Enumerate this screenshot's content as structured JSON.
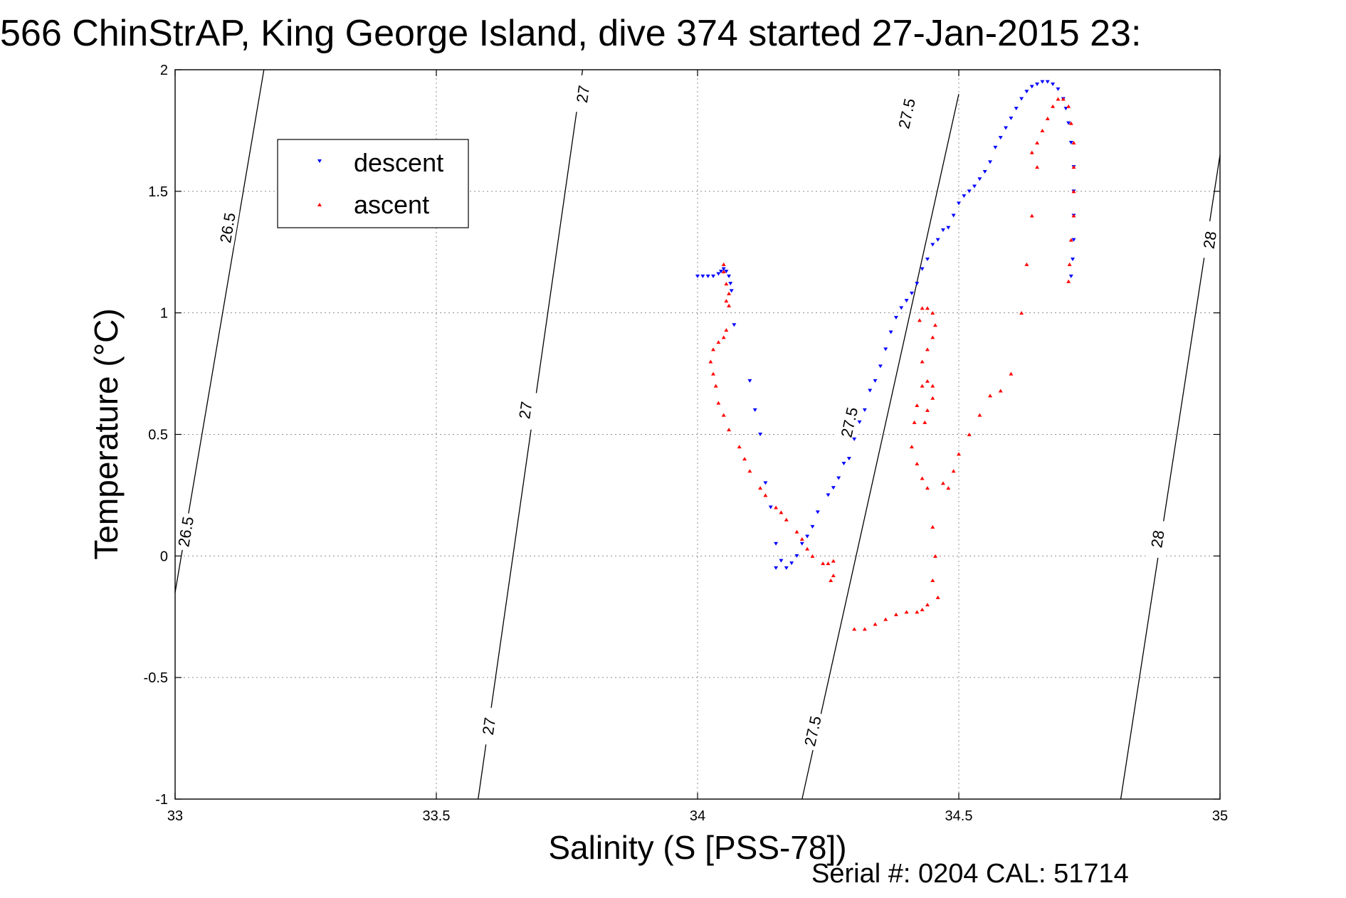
{
  "title": "566 ChinStrAP, King George Island, dive 374 started 27-Jan-2015 23:",
  "footer": "Serial #: 0204  CAL: 51714",
  "chart_data": {
    "type": "scatter",
    "title": "566 ChinStrAP, King George Island, dive 374 started 27-Jan-2015 23:",
    "xlabel": "Salinity (S [PSS-78])",
    "ylabel": "Temperature (°C)",
    "xlim": [
      33,
      35
    ],
    "ylim": [
      -1,
      2
    ],
    "xticks": [
      33,
      33.5,
      34,
      34.5,
      35
    ],
    "xtick_labels": [
      "33",
      "33.5",
      "34",
      "34.5",
      "35"
    ],
    "yticks": [
      -1,
      -0.5,
      0,
      0.5,
      1,
      1.5,
      2
    ],
    "ytick_labels": [
      "-1",
      "-0.5",
      "0",
      "0.5",
      "1",
      "1.5",
      "2"
    ],
    "grid": true,
    "legend": {
      "placement": "top-left",
      "entries": [
        "descent",
        "ascent"
      ]
    },
    "density_contours": [
      {
        "label": "26.5",
        "points": [
          [
            33.0,
            -0.15
          ],
          [
            33.17,
            2.0
          ]
        ],
        "label_positions": [
          [
            33.02,
            0.1
          ],
          [
            33.1,
            1.35
          ]
        ]
      },
      {
        "label": "27",
        "points": [
          [
            33.58,
            -1.0
          ],
          [
            33.78,
            2.0
          ]
        ],
        "label_positions": [
          [
            33.6,
            -0.7
          ],
          [
            33.67,
            0.6
          ],
          [
            33.78,
            1.9
          ]
        ]
      },
      {
        "label": "27.5",
        "points": [
          [
            34.2,
            -1.0
          ],
          [
            34.5,
            1.9
          ]
        ],
        "label_positions": [
          [
            34.22,
            -0.72
          ],
          [
            34.29,
            0.55
          ],
          [
            34.4,
            1.82
          ]
        ]
      },
      {
        "label": "28",
        "points": [
          [
            34.81,
            -1.0
          ],
          [
            35.0,
            1.65
          ]
        ],
        "label_positions": [
          [
            34.88,
            0.07
          ],
          [
            34.98,
            1.3
          ]
        ]
      }
    ],
    "series": [
      {
        "name": "descent",
        "color": "#0000ff",
        "marker": "triangle-down",
        "points": [
          [
            34.0,
            1.15
          ],
          [
            34.01,
            1.15
          ],
          [
            34.02,
            1.15
          ],
          [
            34.03,
            1.15
          ],
          [
            34.04,
            1.16
          ],
          [
            34.045,
            1.17
          ],
          [
            34.05,
            1.18
          ],
          [
            34.055,
            1.17
          ],
          [
            34.06,
            1.15
          ],
          [
            34.063,
            1.12
          ],
          [
            34.065,
            1.09
          ],
          [
            34.07,
            0.95
          ],
          [
            34.1,
            0.72
          ],
          [
            34.11,
            0.6
          ],
          [
            34.12,
            0.5
          ],
          [
            34.13,
            0.3
          ],
          [
            34.14,
            0.2
          ],
          [
            34.15,
            0.05
          ],
          [
            34.15,
            -0.05
          ],
          [
            34.16,
            -0.02
          ],
          [
            34.17,
            -0.05
          ],
          [
            34.18,
            -0.03
          ],
          [
            34.19,
            0.0
          ],
          [
            34.2,
            0.05
          ],
          [
            34.21,
            0.08
          ],
          [
            34.22,
            0.12
          ],
          [
            34.23,
            0.18
          ],
          [
            34.25,
            0.25
          ],
          [
            34.26,
            0.28
          ],
          [
            34.27,
            0.32
          ],
          [
            34.28,
            0.38
          ],
          [
            34.29,
            0.4
          ],
          [
            34.3,
            0.48
          ],
          [
            34.31,
            0.55
          ],
          [
            34.32,
            0.6
          ],
          [
            34.33,
            0.68
          ],
          [
            34.34,
            0.72
          ],
          [
            34.35,
            0.78
          ],
          [
            34.36,
            0.85
          ],
          [
            34.37,
            0.92
          ],
          [
            34.38,
            0.98
          ],
          [
            34.39,
            1.02
          ],
          [
            34.4,
            1.05
          ],
          [
            34.41,
            1.08
          ],
          [
            34.42,
            1.12
          ],
          [
            34.43,
            1.18
          ],
          [
            34.44,
            1.22
          ],
          [
            34.45,
            1.28
          ],
          [
            34.46,
            1.3
          ],
          [
            34.47,
            1.34
          ],
          [
            34.48,
            1.35
          ],
          [
            34.49,
            1.4
          ],
          [
            34.5,
            1.45
          ],
          [
            34.51,
            1.48
          ],
          [
            34.52,
            1.5
          ],
          [
            34.53,
            1.52
          ],
          [
            34.54,
            1.55
          ],
          [
            34.55,
            1.58
          ],
          [
            34.56,
            1.62
          ],
          [
            34.57,
            1.68
          ],
          [
            34.58,
            1.72
          ],
          [
            34.59,
            1.76
          ],
          [
            34.6,
            1.8
          ],
          [
            34.61,
            1.84
          ],
          [
            34.62,
            1.88
          ],
          [
            34.63,
            1.91
          ],
          [
            34.64,
            1.93
          ],
          [
            34.65,
            1.94
          ],
          [
            34.66,
            1.95
          ],
          [
            34.67,
            1.95
          ],
          [
            34.68,
            1.94
          ],
          [
            34.69,
            1.92
          ],
          [
            34.7,
            1.88
          ],
          [
            34.705,
            1.84
          ],
          [
            34.71,
            1.78
          ],
          [
            34.715,
            1.7
          ],
          [
            34.72,
            1.6
          ],
          [
            34.72,
            1.5
          ],
          [
            34.72,
            1.4
          ],
          [
            34.72,
            1.3
          ],
          [
            34.718,
            1.22
          ],
          [
            34.715,
            1.15
          ]
        ]
      },
      {
        "name": "ascent",
        "color": "#ff0000",
        "marker": "triangle-up",
        "points": [
          [
            34.05,
            1.2
          ],
          [
            34.05,
            1.17
          ],
          [
            34.055,
            1.12
          ],
          [
            34.06,
            1.08
          ],
          [
            34.055,
            1.05
          ],
          [
            34.06,
            1.03
          ],
          [
            34.055,
            0.93
          ],
          [
            34.05,
            0.9
          ],
          [
            34.04,
            0.88
          ],
          [
            34.03,
            0.85
          ],
          [
            34.025,
            0.8
          ],
          [
            34.03,
            0.75
          ],
          [
            34.035,
            0.7
          ],
          [
            34.04,
            0.63
          ],
          [
            34.05,
            0.58
          ],
          [
            34.06,
            0.52
          ],
          [
            34.08,
            0.45
          ],
          [
            34.09,
            0.4
          ],
          [
            34.1,
            0.35
          ],
          [
            34.12,
            0.28
          ],
          [
            34.13,
            0.25
          ],
          [
            34.15,
            0.2
          ],
          [
            34.16,
            0.18
          ],
          [
            34.17,
            0.15
          ],
          [
            34.19,
            0.1
          ],
          [
            34.2,
            0.07
          ],
          [
            34.21,
            0.03
          ],
          [
            34.22,
            0.0
          ],
          [
            34.24,
            -0.03
          ],
          [
            34.25,
            -0.03
          ],
          [
            34.26,
            -0.02
          ],
          [
            34.26,
            -0.08
          ],
          [
            34.255,
            -0.1
          ],
          [
            34.3,
            -0.3
          ],
          [
            34.32,
            -0.3
          ],
          [
            34.34,
            -0.28
          ],
          [
            34.36,
            -0.26
          ],
          [
            34.38,
            -0.24
          ],
          [
            34.4,
            -0.23
          ],
          [
            34.42,
            -0.23
          ],
          [
            34.43,
            -0.22
          ],
          [
            34.44,
            -0.2
          ],
          [
            34.45,
            -0.1
          ],
          [
            34.46,
            -0.17
          ],
          [
            34.455,
            0.0
          ],
          [
            34.45,
            0.12
          ],
          [
            34.44,
            0.28
          ],
          [
            34.43,
            0.32
          ],
          [
            34.42,
            0.38
          ],
          [
            34.41,
            0.45
          ],
          [
            34.415,
            0.55
          ],
          [
            34.42,
            0.62
          ],
          [
            34.43,
            0.7
          ],
          [
            34.44,
            0.72
          ],
          [
            34.45,
            0.7
          ],
          [
            34.45,
            0.65
          ],
          [
            34.44,
            0.6
          ],
          [
            34.435,
            0.55
          ],
          [
            34.43,
            0.8
          ],
          [
            34.44,
            0.85
          ],
          [
            34.45,
            0.9
          ],
          [
            34.455,
            0.95
          ],
          [
            34.45,
            1.0
          ],
          [
            34.44,
            1.02
          ],
          [
            34.43,
            1.02
          ],
          [
            34.425,
            0.97
          ],
          [
            34.47,
            0.3
          ],
          [
            34.48,
            0.28
          ],
          [
            34.49,
            0.35
          ],
          [
            34.5,
            0.42
          ],
          [
            34.52,
            0.5
          ],
          [
            34.54,
            0.58
          ],
          [
            34.56,
            0.66
          ],
          [
            34.58,
            0.68
          ],
          [
            34.6,
            0.75
          ],
          [
            34.62,
            1.0
          ],
          [
            34.63,
            1.2
          ],
          [
            34.64,
            1.4
          ],
          [
            34.65,
            1.6
          ],
          [
            34.64,
            1.66
          ],
          [
            34.65,
            1.7
          ],
          [
            34.66,
            1.75
          ],
          [
            34.67,
            1.8
          ],
          [
            34.68,
            1.85
          ],
          [
            34.69,
            1.88
          ],
          [
            34.7,
            1.88
          ],
          [
            34.71,
            1.85
          ],
          [
            34.715,
            1.78
          ],
          [
            34.72,
            1.7
          ],
          [
            34.72,
            1.6
          ],
          [
            34.72,
            1.5
          ],
          [
            34.72,
            1.4
          ],
          [
            34.715,
            1.3
          ],
          [
            34.712,
            1.2
          ],
          [
            34.71,
            1.13
          ]
        ]
      }
    ]
  }
}
